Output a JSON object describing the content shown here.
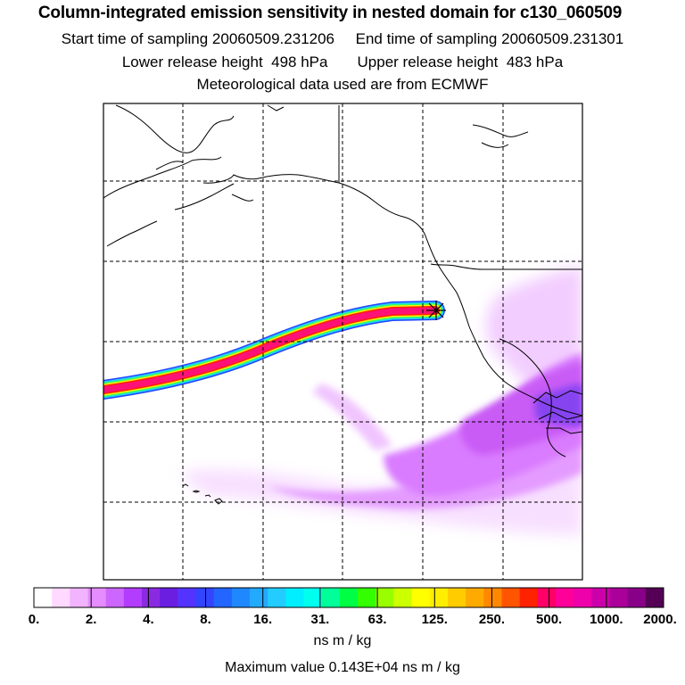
{
  "title": "Column-integrated emission sensitivity in nested domain for c130_060509",
  "start_label": "Start time of sampling",
  "start_value": "20060509.231206",
  "end_label": "End time of sampling",
  "end_value": "20060509.231301",
  "lower_label": "Lower release height",
  "lower_value": "498 hPa",
  "upper_label": "Upper release height",
  "upper_value": "483 hPa",
  "met_text": "Meteorological data used are from ECMWF",
  "colorbar": {
    "labels": [
      "0.",
      "2.",
      "4.",
      "8.",
      "16.",
      "31.",
      "63.",
      "125.",
      "250.",
      "500.",
      "1000.",
      "2000."
    ],
    "colors": [
      "#ffffff",
      "#ffd9ff",
      "#f2b3ff",
      "#e58cff",
      "#cc66ff",
      "#b23dff",
      "#8a2be2",
      "#6a1fe0",
      "#5533ff",
      "#3344ff",
      "#2266ff",
      "#1f88ff",
      "#22aaff",
      "#22ccff",
      "#00eeff",
      "#00ffee",
      "#00ff99",
      "#00ff44",
      "#33ff00",
      "#99ff00",
      "#ccff00",
      "#ffff00",
      "#ffee00",
      "#ffcc00",
      "#ffaa00",
      "#ff8800",
      "#ff5500",
      "#ff2200",
      "#ff0066",
      "#ff0099",
      "#ee00aa",
      "#cc00aa",
      "#aa0099",
      "#880088",
      "#550055"
    ],
    "units": "ns m / kg"
  },
  "max_label": "Maximum value",
  "max_value": "0.143E+04 ns m / kg"
}
